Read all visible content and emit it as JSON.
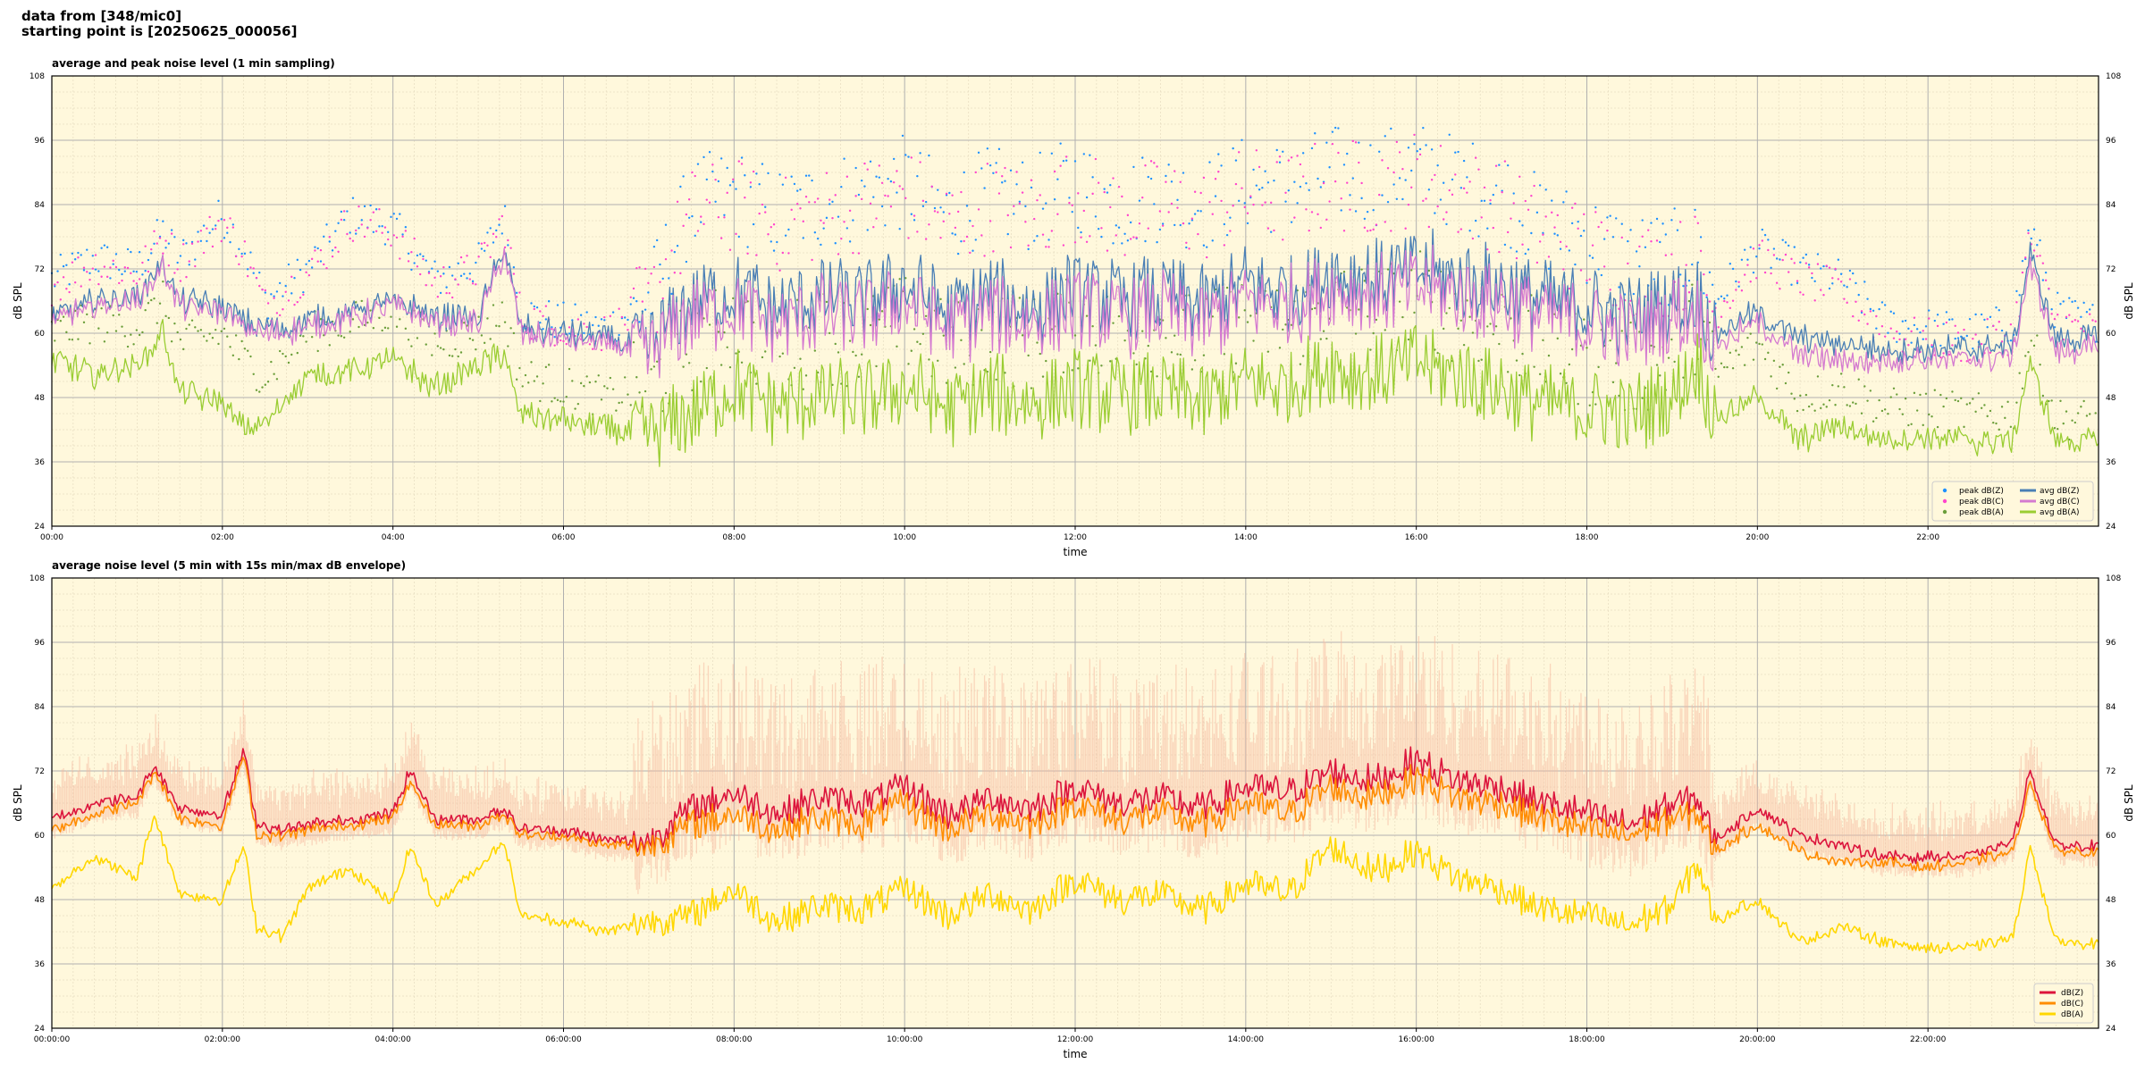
{
  "header": {
    "line1": "data from [348/mic0]",
    "line2": "starting point is [20250625_000056]"
  },
  "chart_data": [
    {
      "type": "line",
      "title": "average and peak noise level (1 min sampling)",
      "xlabel": "time",
      "ylabel": "dB SPL",
      "xlim_hours": [
        0,
        24
      ],
      "ylim": [
        24,
        108
      ],
      "yticks": [
        24,
        36,
        48,
        60,
        72,
        84,
        96,
        108
      ],
      "xtick_labels": [
        "00:00",
        "02:00",
        "04:00",
        "06:00",
        "08:00",
        "10:00",
        "12:00",
        "14:00",
        "16:00",
        "18:00",
        "20:00",
        "22:00"
      ],
      "grid": true,
      "legend_position": "bottom-right",
      "legend": [
        "peak dB(Z)",
        "peak dB(C)",
        "peak dB(A)",
        "avg dB(Z)",
        "avg dB(C)",
        "avg dB(A)"
      ],
      "x_hours": [
        0,
        0.5,
        1,
        1.3,
        1.5,
        2,
        2.25,
        2.5,
        3,
        3.5,
        4,
        4.5,
        5,
        5.3,
        5.5,
        6,
        6.5,
        7,
        7.5,
        8,
        8.5,
        9,
        9.5,
        10,
        10.5,
        11,
        11.5,
        12,
        12.5,
        13,
        13.5,
        14,
        14.5,
        15,
        15.5,
        16,
        16.5,
        17,
        17.5,
        18,
        18.5,
        19,
        19.3,
        19.5,
        20,
        20.5,
        21,
        21.5,
        22,
        22.5,
        23,
        23.2,
        23.5,
        24
      ],
      "series": [
        {
          "name": "avg dB(Z)",
          "color": "#4a7fb5",
          "values": [
            63,
            66,
            67,
            73,
            66,
            65,
            62,
            61,
            62,
            64,
            66,
            63,
            63,
            76,
            61,
            60,
            59,
            57,
            66,
            68,
            64,
            67,
            66,
            69,
            64,
            67,
            65,
            68,
            66,
            67,
            65,
            69,
            68,
            71,
            70,
            72,
            70,
            69,
            66,
            65,
            63,
            66,
            67,
            60,
            64,
            59,
            58,
            57,
            57,
            57,
            58,
            75,
            59,
            59
          ]
        },
        {
          "name": "avg dB(C)",
          "color": "#d47ad0",
          "values": [
            62,
            65,
            66,
            72,
            65,
            64,
            61,
            60,
            61,
            63,
            65,
            62,
            62,
            75,
            60,
            59,
            58,
            56,
            63,
            65,
            61,
            64,
            63,
            66,
            61,
            64,
            62,
            65,
            63,
            64,
            62,
            66,
            65,
            68,
            67,
            69,
            67,
            66,
            63,
            62,
            60,
            63,
            64,
            58,
            62,
            56,
            55,
            55,
            55,
            55,
            56,
            73,
            57,
            57
          ]
        },
        {
          "name": "avg dB(A)",
          "color": "#9acd32",
          "values": [
            55,
            52,
            54,
            60,
            49,
            47,
            42,
            43,
            52,
            53,
            55,
            50,
            54,
            56,
            45,
            44,
            42,
            41,
            45,
            50,
            46,
            48,
            47,
            50,
            46,
            49,
            47,
            50,
            48,
            49,
            47,
            51,
            50,
            54,
            52,
            55,
            52,
            50,
            47,
            46,
            45,
            48,
            55,
            44,
            48,
            40,
            43,
            40,
            41,
            40,
            40,
            55,
            40,
            40
          ]
        },
        {
          "name": "peak dB(Z)",
          "color": "#1e90ff",
          "values": [
            70,
            74,
            72,
            79,
            74,
            82,
            76,
            66,
            72,
            82,
            80,
            70,
            73,
            82,
            64,
            62,
            61,
            66,
            84,
            86,
            82,
            84,
            86,
            88,
            82,
            86,
            84,
            88,
            84,
            86,
            84,
            88,
            87,
            90,
            89,
            91,
            88,
            86,
            80,
            78,
            74,
            74,
            76,
            66,
            76,
            72,
            70,
            62,
            61,
            60,
            62,
            80,
            64,
            62
          ]
        },
        {
          "name": "peak dB(C)",
          "color": "#ff44cc",
          "values": [
            69,
            73,
            71,
            78,
            73,
            81,
            75,
            65,
            71,
            81,
            79,
            69,
            72,
            81,
            63,
            61,
            60,
            65,
            82,
            84,
            80,
            82,
            84,
            86,
            80,
            84,
            82,
            86,
            82,
            84,
            82,
            86,
            85,
            88,
            87,
            89,
            86,
            84,
            78,
            76,
            72,
            72,
            74,
            64,
            74,
            70,
            68,
            60,
            59,
            58,
            60,
            78,
            62,
            60
          ]
        },
        {
          "name": "peak dB(A)",
          "color": "#6b9e3a",
          "values": [
            60,
            62,
            61,
            66,
            58,
            60,
            55,
            52,
            60,
            62,
            64,
            58,
            60,
            64,
            52,
            50,
            48,
            50,
            58,
            62,
            56,
            60,
            58,
            62,
            57,
            60,
            58,
            62,
            59,
            61,
            58,
            63,
            61,
            66,
            64,
            67,
            63,
            61,
            57,
            55,
            53,
            56,
            62,
            52,
            58,
            48,
            50,
            46,
            46,
            45,
            45,
            60,
            44,
            44
          ]
        }
      ]
    },
    {
      "type": "line",
      "title": "average noise level (5 min with 15s min/max dB envelope)",
      "xlabel": "time",
      "ylabel": "dB SPL",
      "xlim_hours": [
        0,
        24
      ],
      "ylim": [
        24,
        108
      ],
      "yticks": [
        24,
        36,
        48,
        60,
        72,
        84,
        96,
        108
      ],
      "xtick_labels": [
        "00:00:00",
        "02:00:00",
        "04:00:00",
        "06:00:00",
        "08:00:00",
        "10:00:00",
        "12:00:00",
        "14:00:00",
        "16:00:00",
        "18:00:00",
        "20:00:00",
        "22:00:00"
      ],
      "grid": true,
      "legend_position": "bottom-right",
      "legend": [
        "dB(Z)",
        "dB(C)",
        "dB(A)"
      ],
      "x_hours": [
        0,
        0.5,
        1,
        1.2,
        1.5,
        2,
        2.25,
        2.4,
        2.7,
        3,
        3.5,
        4,
        4.2,
        4.5,
        5,
        5.3,
        5.5,
        6,
        6.5,
        7,
        7.5,
        8,
        8.5,
        9,
        9.5,
        10,
        10.5,
        11,
        11.5,
        12,
        12.5,
        13,
        13.5,
        14,
        14.5,
        15,
        15.5,
        16,
        16.5,
        17,
        17.5,
        18,
        18.5,
        19,
        19.3,
        19.5,
        20,
        20.5,
        21,
        21.5,
        22,
        22.5,
        23,
        23.2,
        23.5,
        24
      ],
      "series": [
        {
          "name": "dB(Z)",
          "color": "#dc143c",
          "values": [
            63,
            66,
            67,
            73,
            65,
            64,
            76,
            62,
            61,
            62,
            63,
            64,
            72,
            63,
            63,
            65,
            61,
            61,
            59,
            59,
            65,
            68,
            64,
            67,
            66,
            69,
            64,
            67,
            65,
            69,
            66,
            67,
            65,
            69,
            68,
            72,
            70,
            74,
            70,
            69,
            66,
            64,
            62,
            66,
            67,
            59,
            65,
            60,
            58,
            56,
            56,
            56,
            59,
            72,
            58,
            58
          ]
        },
        {
          "name": "dB(C)",
          "color": "#ff8c00",
          "values": [
            61,
            64,
            66,
            72,
            63,
            62,
            75,
            60,
            60,
            61,
            62,
            63,
            70,
            62,
            62,
            64,
            60,
            60,
            58,
            58,
            62,
            64,
            61,
            63,
            62,
            66,
            61,
            64,
            62,
            66,
            63,
            64,
            62,
            66,
            64,
            69,
            67,
            71,
            67,
            66,
            63,
            61,
            60,
            63,
            64,
            57,
            62,
            57,
            55,
            55,
            54,
            55,
            57,
            70,
            57,
            57
          ]
        },
        {
          "name": "dB(A)",
          "color": "#ffd700",
          "values": [
            50,
            56,
            52,
            64,
            49,
            48,
            58,
            43,
            41,
            50,
            54,
            47,
            58,
            47,
            54,
            59,
            45,
            44,
            42,
            44,
            45,
            50,
            44,
            47,
            46,
            50,
            45,
            49,
            46,
            52,
            48,
            49,
            46,
            51,
            49,
            58,
            53,
            57,
            52,
            50,
            46,
            45,
            43,
            47,
            55,
            44,
            48,
            40,
            43,
            40,
            39,
            39,
            41,
            58,
            40,
            40
          ]
        }
      ]
    }
  ]
}
